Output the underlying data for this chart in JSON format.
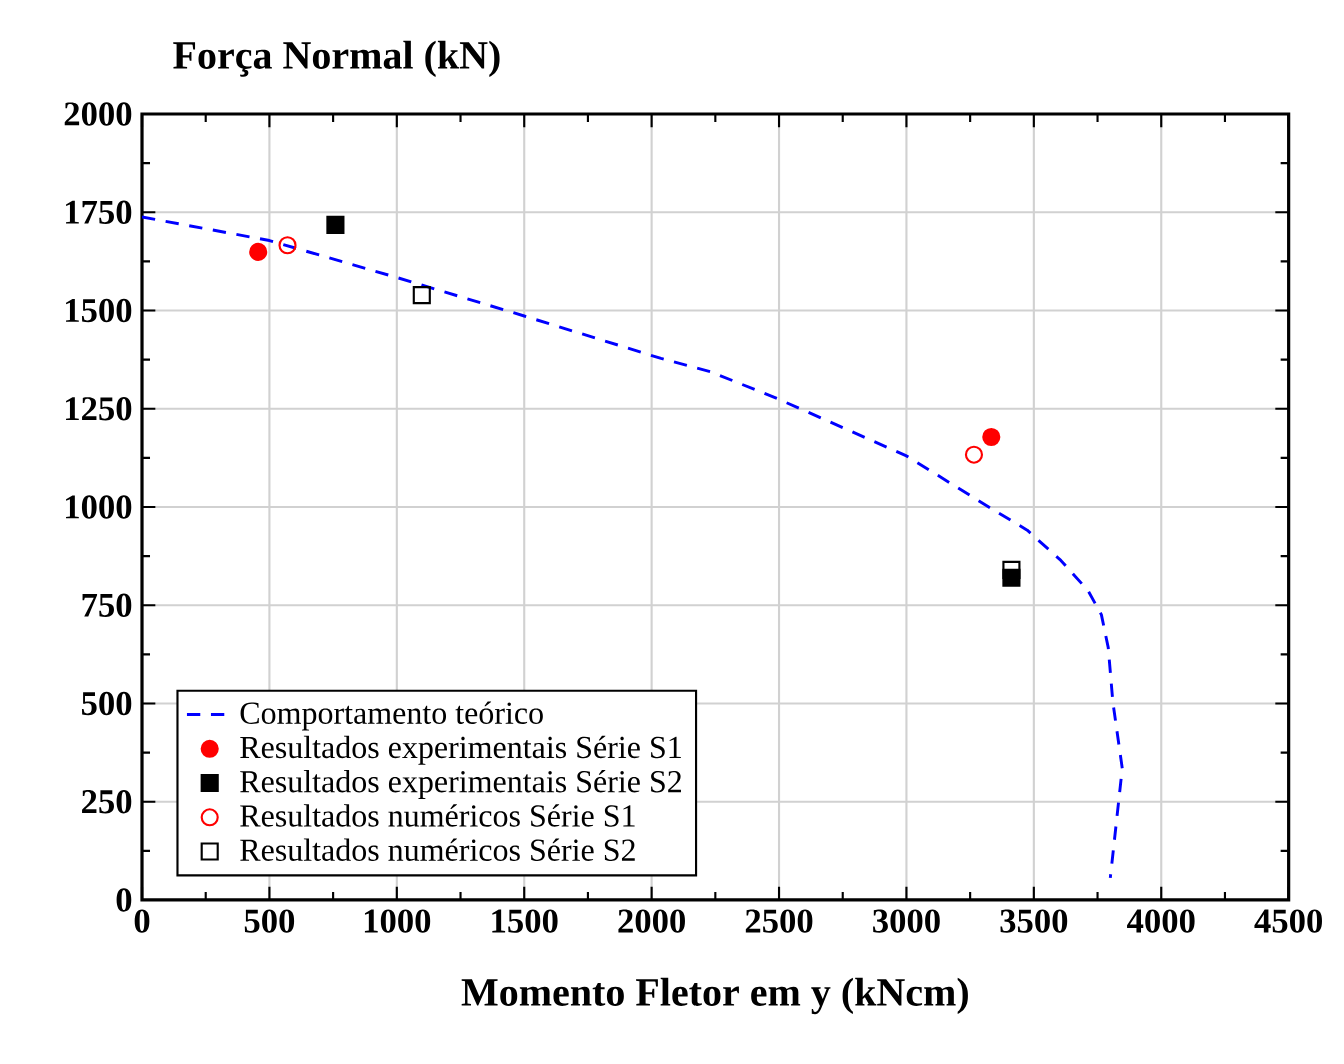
{
  "chart_data": {
    "type": "scatter",
    "ylabel": "Força Normal (kN)",
    "xlabel": "Momento Fletor em y (kNcm)",
    "xlim": [
      0,
      4500
    ],
    "xticks": [
      0,
      500,
      1000,
      1500,
      2000,
      2500,
      3000,
      3500,
      4000,
      4500
    ],
    "ylim": [
      0,
      2000
    ],
    "yticks": [
      0,
      250,
      500,
      750,
      1000,
      1250,
      1500,
      1750,
      2000
    ],
    "grid": true,
    "legend": "bottom left",
    "series": [
      {
        "name": "Comportamento teórico",
        "type": "line",
        "line_style": "dashed",
        "marker": "none",
        "color": "#0000ff",
        "x": [
          0,
          500,
          1000,
          1500,
          2037,
          2232,
          2496,
          3000,
          3343,
          3474,
          3606,
          3713,
          3765,
          3792,
          3810,
          3847,
          3800
        ],
        "values": [
          1738,
          1678,
          1584,
          1486,
          1378,
          1344,
          1275,
          1130,
          992,
          941,
          864,
          787,
          726,
          642,
          504,
          335,
          56
        ]
      },
      {
        "name": "Resultados experimentais Série S1",
        "marker": "circle",
        "color": "#ff0000",
        "x": [
          456,
          3333
        ],
        "values": [
          1649,
          1178
        ]
      },
      {
        "name": "Resultados experimentais Série S2",
        "marker": "square",
        "color": "#000000",
        "x": [
          759,
          3412
        ],
        "values": [
          1718,
          820
        ]
      },
      {
        "name": "Resultados numéricos Série S1",
        "marker": "circle-open",
        "color": "#ff0000",
        "x": [
          571,
          3265
        ],
        "values": [
          1666,
          1133
        ]
      },
      {
        "name": "Resultados numéricos Série S2",
        "marker": "square-open",
        "color": "#000000",
        "x": [
          1098,
          3412
        ],
        "values": [
          1539,
          840
        ]
      }
    ]
  }
}
